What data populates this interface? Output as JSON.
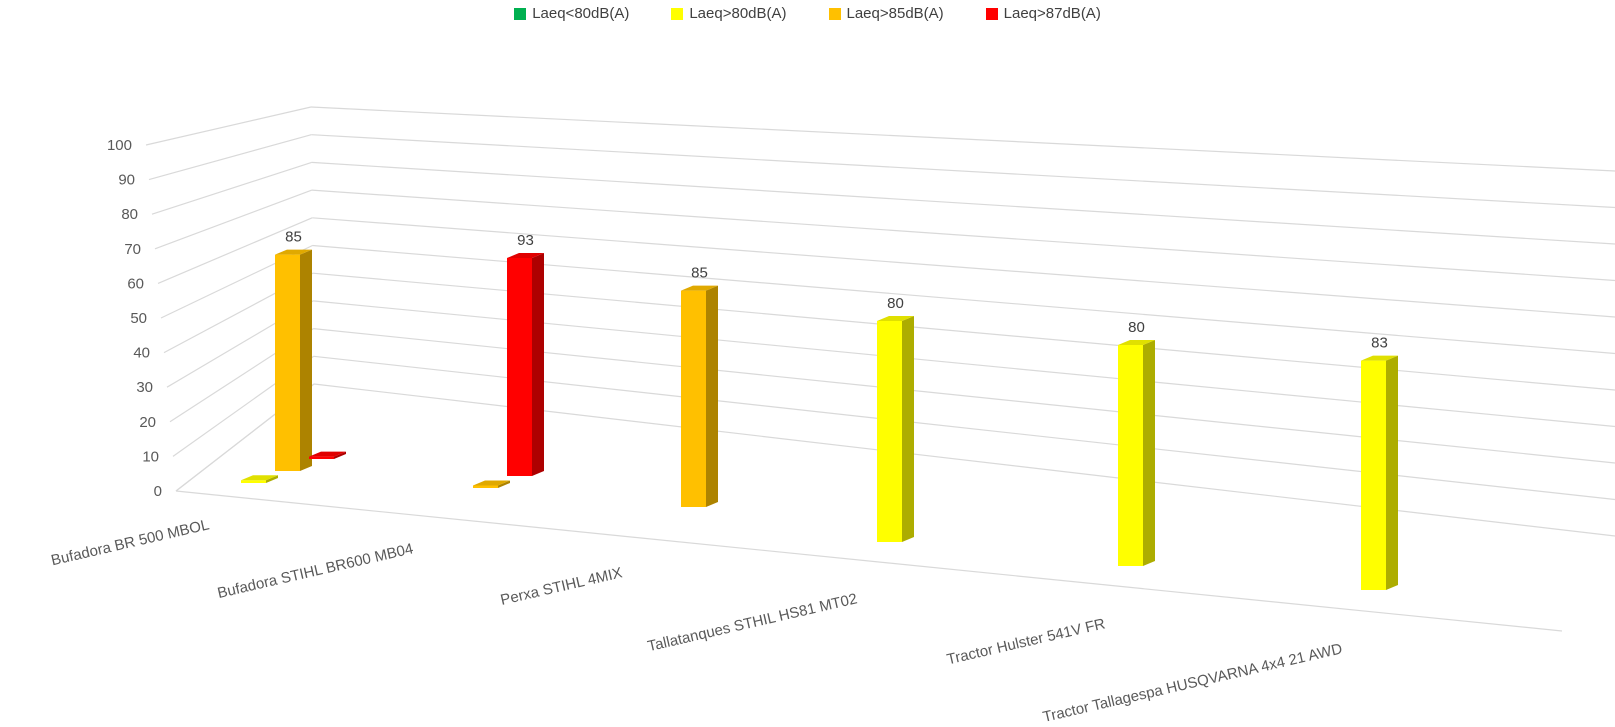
{
  "chart_data": {
    "type": "bar",
    "title": "",
    "xlabel": "",
    "ylabel": "",
    "ylim": [
      0,
      100
    ],
    "yticks": [
      0,
      10,
      20,
      30,
      40,
      50,
      60,
      70,
      80,
      90,
      100
    ],
    "grid": true,
    "legend_position": "top",
    "categories": [
      "Bufadora BR 500 MBOL",
      "Bufadora STIHL BR600 MB04",
      "Perxa STIHL 4MIX",
      "Tallatanques STHIL HS81 MT02",
      "Tractor Hulster 541V FR",
      "Tractor Tallagespa HUSQVARNA 4x4 21 AWD"
    ],
    "series": [
      {
        "name": "Laeq<80dB(A)",
        "color": "#00B050",
        "values": [
          0,
          0,
          0,
          0,
          0,
          0
        ]
      },
      {
        "name": "Laeq>80dB(A)",
        "color": "#FFFF00",
        "values": [
          1,
          0,
          0,
          80,
          80,
          83
        ]
      },
      {
        "name": "Laeq>85dB(A)",
        "color": "#FFC000",
        "values": [
          85,
          1,
          85,
          0,
          0,
          0
        ]
      },
      {
        "name": "Laeq>87dB(A)",
        "color": "#FF0000",
        "values": [
          1,
          93,
          0,
          0,
          0,
          0
        ]
      }
    ],
    "data_labels": [
      {
        "category": 0,
        "series": 2,
        "text": "85"
      },
      {
        "category": 1,
        "series": 3,
        "text": "93"
      },
      {
        "category": 2,
        "series": 2,
        "text": "85"
      },
      {
        "category": 3,
        "series": 1,
        "text": "80"
      },
      {
        "category": 4,
        "series": 1,
        "text": "80"
      },
      {
        "category": 5,
        "series": 1,
        "text": "83"
      }
    ]
  }
}
